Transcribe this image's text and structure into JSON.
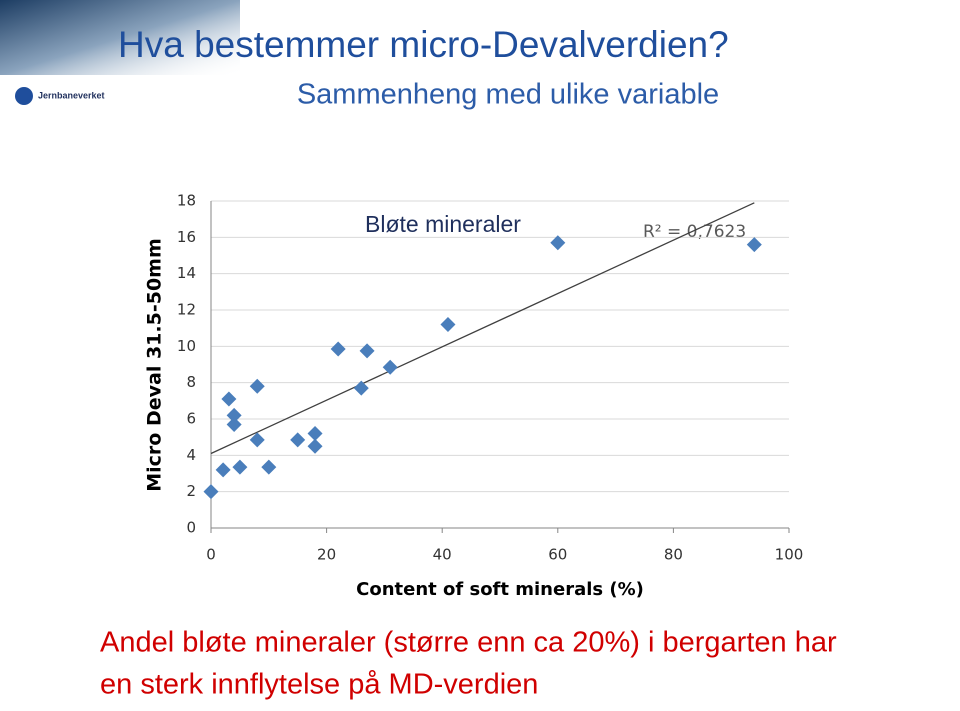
{
  "slide": {
    "title": "Hva bestemmer micro-Devalverdien?",
    "subtitle": "Sammenheng med ulike variable",
    "logo": "Jernbaneverket",
    "caption": [
      "Andel bløte mineraler (større enn ca 20%) i bergarten har",
      "en sterk innflytelse på MD-verdien"
    ]
  },
  "chart_data": {
    "type": "scatter",
    "title": "Bløte mineraler",
    "annotation": "R² = 0,7623",
    "x_label": "Content of soft minerals (%)",
    "y_label": "Micro Deval 31.5-50mm",
    "x": [
      0,
      2.1,
      3.1,
      4,
      4,
      5,
      8,
      8,
      10,
      15,
      18,
      18,
      22,
      26,
      27,
      31,
      41,
      60,
      94
    ],
    "values": [
      2,
      3.2,
      7.1,
      6.2,
      5.7,
      3.35,
      7.8,
      4.85,
      3.35,
      4.85,
      5.2,
      4.5,
      9.85,
      7.7,
      9.75,
      8.85,
      11.2,
      15.7,
      15.6
    ],
    "color": "#4a7ebb",
    "trendline": {
      "x": [
        0,
        94
      ],
      "values": [
        4.1,
        17.9
      ],
      "color": "#404040"
    },
    "xlim": [
      0,
      100
    ],
    "xticks": [
      0,
      20,
      40,
      60,
      80,
      100
    ],
    "ylim": [
      0,
      18
    ],
    "yticks": [
      0,
      2,
      4,
      6,
      8,
      10,
      12,
      14,
      16,
      18
    ],
    "grid": true
  }
}
